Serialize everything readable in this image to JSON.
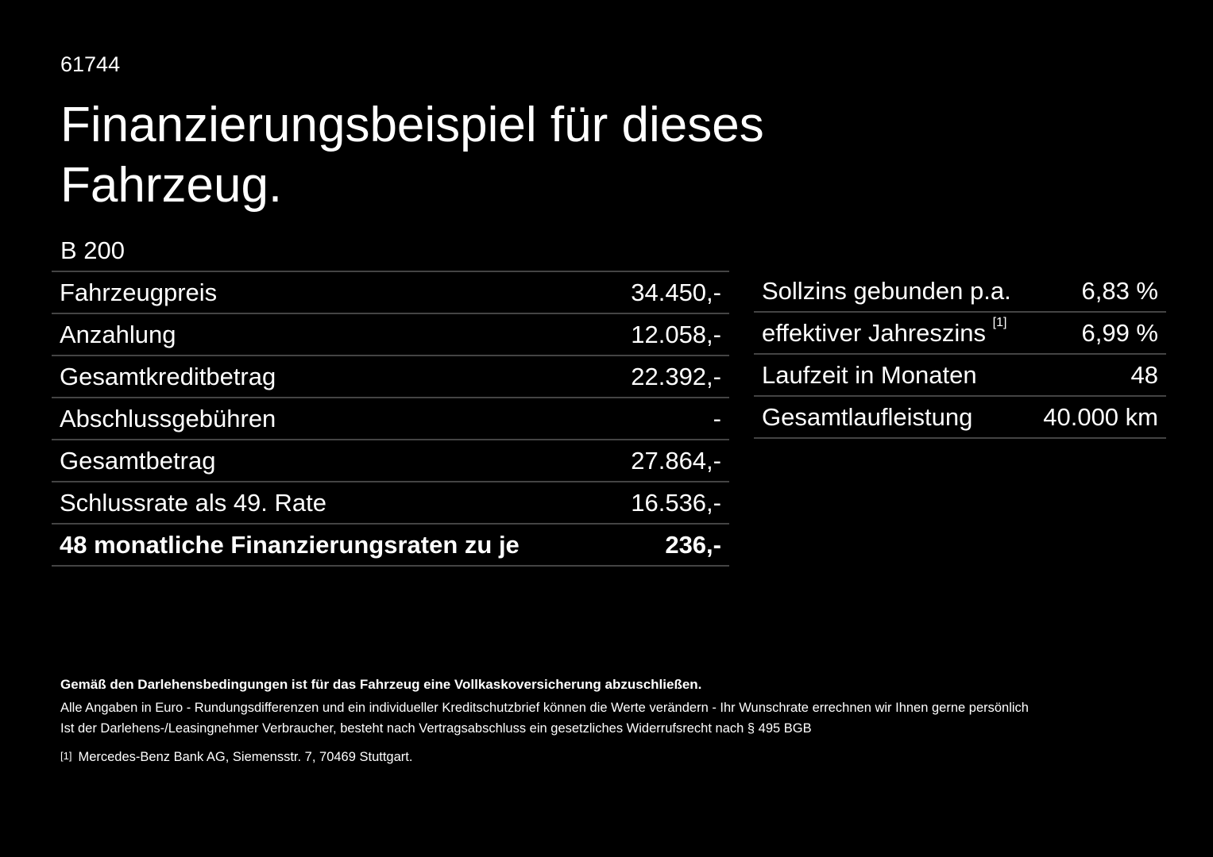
{
  "header": {
    "id": "61744",
    "title_line1": "Finanzierungsbeispiel für dieses",
    "title_line2": "Fahrzeug."
  },
  "model": "B 200",
  "left_table": {
    "rows": [
      [
        "Fahrzeugpreis",
        "34.450,-"
      ],
      [
        "Anzahlung",
        "12.058,-"
      ],
      [
        "Gesamtkreditbetrag",
        "22.392,-"
      ],
      [
        "Abschlussgebühren",
        "-"
      ],
      [
        "Gesamtbetrag",
        "27.864,-"
      ],
      [
        "Schlussrate als 49. Rate",
        "16.536,-"
      ],
      [
        "48 monatliche Finanzierungsraten zu je",
        "236,-"
      ]
    ]
  },
  "right_table": {
    "rows": [
      [
        "Sollzins gebunden p.a.",
        "6,83 %"
      ],
      [
        "effektiver Jahreszins",
        "6,99 %"
      ],
      [
        "Laufzeit in Monaten",
        "48"
      ],
      [
        "Gesamtlaufleistung",
        "40.000 km"
      ]
    ],
    "footnote_ref": "[1]"
  },
  "footer": {
    "bold_note": "Gemäß den Darlehensbedingungen ist für das Fahrzeug eine Vollkaskoversicherung abzuschließen.",
    "line1": "Alle Angaben in Euro - Rundungsdifferenzen und ein individueller Kreditschutzbrief können die Werte verändern - Ihr Wunschrate errechnen wir Ihnen gerne persönlich",
    "line2": "Ist der Darlehens-/Leasingnehmer Verbraucher, besteht nach Vertragsabschluss ein gesetzliches Widerrufsrecht nach § 495 BGB",
    "footnote_mark": "[1]",
    "footnote_text": "Mercedes-Benz Bank AG, Siemensstr. 7, 70469 Stuttgart."
  }
}
